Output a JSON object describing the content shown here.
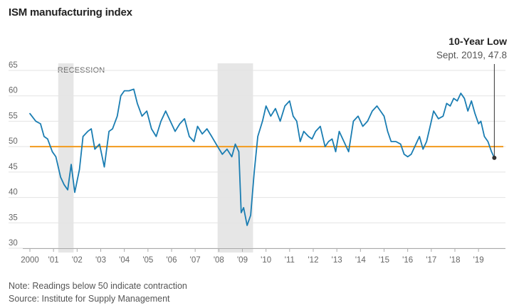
{
  "title": "ISM manufacturing index",
  "note": "Note: Readings below 50 indicate contraction",
  "source": "Source: Institute for Supply Management",
  "colors": {
    "line": "#1a7db2",
    "reference": "#f29a1d",
    "recession": "#e6e6e6",
    "grid": "#e3e3e3",
    "marker": "#333333"
  },
  "chart_data": {
    "type": "line",
    "title": "ISM manufacturing index",
    "xlabel": "",
    "ylabel": "",
    "xlim": [
      2000.0,
      2019.9
    ],
    "ylim": [
      30,
      65
    ],
    "yticks": [
      30,
      35,
      40,
      45,
      50,
      55,
      60,
      65
    ],
    "xticks": [
      {
        "value": 2000,
        "label": "2000"
      },
      {
        "value": 2001,
        "label": "'01"
      },
      {
        "value": 2002,
        "label": "'02"
      },
      {
        "value": 2003,
        "label": "'03"
      },
      {
        "value": 2004,
        "label": "'04"
      },
      {
        "value": 2005,
        "label": "'05"
      },
      {
        "value": 2006,
        "label": "'06"
      },
      {
        "value": 2007,
        "label": "'07"
      },
      {
        "value": 2008,
        "label": "'08"
      },
      {
        "value": 2009,
        "label": "'09"
      },
      {
        "value": 2010,
        "label": "'10"
      },
      {
        "value": 2011,
        "label": "'11"
      },
      {
        "value": 2012,
        "label": "'12"
      },
      {
        "value": 2013,
        "label": "'13"
      },
      {
        "value": 2014,
        "label": "'14"
      },
      {
        "value": 2015,
        "label": "'15"
      },
      {
        "value": 2016,
        "label": "'16"
      },
      {
        "value": 2017,
        "label": "'17"
      },
      {
        "value": 2018,
        "label": "'18"
      },
      {
        "value": 2019,
        "label": "'19"
      }
    ],
    "reference_line": {
      "value": 50
    },
    "recessions": [
      {
        "start": 2001.2,
        "end": 2001.85,
        "label": "RECESSION"
      },
      {
        "start": 2007.95,
        "end": 2009.45,
        "label": ""
      }
    ],
    "annotation": {
      "title": "10-Year Low",
      "subtitle": "Sept. 2019, 47.8",
      "x": 2019.67,
      "y": 47.8
    },
    "series": [
      {
        "name": "ISM manufacturing index",
        "x": [
          2000.0,
          2000.25,
          2000.45,
          2000.6,
          2000.75,
          2000.95,
          2001.1,
          2001.3,
          2001.45,
          2001.6,
          2001.75,
          2001.9,
          2002.1,
          2002.25,
          2002.45,
          2002.6,
          2002.75,
          2002.95,
          2003.15,
          2003.35,
          2003.5,
          2003.7,
          2003.85,
          2004.0,
          2004.2,
          2004.4,
          2004.55,
          2004.75,
          2004.95,
          2005.15,
          2005.35,
          2005.55,
          2005.75,
          2005.95,
          2006.15,
          2006.35,
          2006.55,
          2006.75,
          2006.95,
          2007.1,
          2007.3,
          2007.5,
          2007.7,
          2007.95,
          2008.15,
          2008.35,
          2008.55,
          2008.7,
          2008.85,
          2008.95,
          2009.05,
          2009.2,
          2009.35,
          2009.5,
          2009.65,
          2009.85,
          2010.0,
          2010.2,
          2010.4,
          2010.6,
          2010.8,
          2011.0,
          2011.15,
          2011.3,
          2011.45,
          2011.6,
          2011.8,
          2011.95,
          2012.1,
          2012.3,
          2012.5,
          2012.65,
          2012.8,
          2012.95,
          2013.1,
          2013.3,
          2013.5,
          2013.7,
          2013.9,
          2014.1,
          2014.3,
          2014.5,
          2014.7,
          2014.85,
          2015.0,
          2015.15,
          2015.3,
          2015.5,
          2015.7,
          2015.85,
          2016.0,
          2016.15,
          2016.3,
          2016.5,
          2016.65,
          2016.8,
          2016.95,
          2017.1,
          2017.3,
          2017.5,
          2017.65,
          2017.8,
          2017.95,
          2018.1,
          2018.25,
          2018.4,
          2018.55,
          2018.7,
          2018.85,
          2019.0,
          2019.1,
          2019.25,
          2019.4,
          2019.55,
          2019.67
        ],
        "values": [
          56.5,
          55,
          54.5,
          52,
          51.5,
          49,
          48,
          44,
          42.5,
          41.5,
          46.5,
          41,
          45.5,
          52,
          53,
          53.5,
          49.5,
          50.5,
          46,
          53,
          53.5,
          56,
          60,
          61,
          61,
          61.3,
          58.5,
          56,
          57,
          53.5,
          52,
          55,
          57,
          55,
          53,
          54.5,
          55.5,
          52,
          51,
          54,
          52.5,
          53.5,
          52,
          50,
          48.5,
          49.5,
          48,
          50.5,
          49,
          37,
          38,
          34.5,
          36.5,
          45,
          52,
          55,
          58,
          56,
          57.5,
          55,
          58,
          59,
          56,
          55,
          51,
          53,
          52,
          51.5,
          53,
          54,
          50,
          51,
          51.5,
          49,
          53,
          51,
          49,
          55,
          56,
          54,
          55,
          57,
          58,
          57,
          56,
          53,
          51,
          51,
          50.5,
          48.5,
          48,
          48.5,
          50,
          52,
          49.5,
          51,
          54,
          57,
          55.5,
          56,
          58.5,
          58,
          59.5,
          59,
          60.5,
          59.5,
          57,
          59,
          56.5,
          54.5,
          55,
          52,
          51,
          49,
          47.8
        ]
      }
    ]
  }
}
